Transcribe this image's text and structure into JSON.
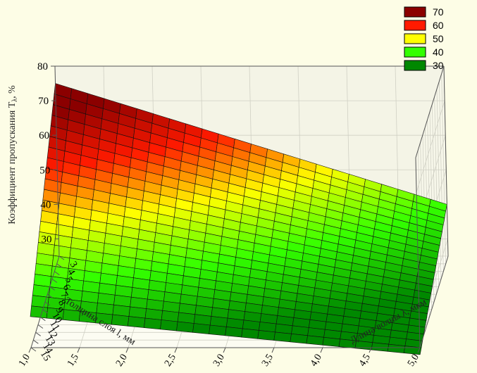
{
  "chart_data": {
    "type": "surface3d",
    "title": "",
    "x_label": "Длина волны λ, мкм",
    "y_label": "Толщина слоя l, мм",
    "z_label": "Коэффициент пропускания T",
    "z_label_sub": "λ",
    "z_label_unit": ", %",
    "x_ticks": [
      "1,0",
      "1,5",
      "2,0",
      "2,5",
      "3,0",
      "3,5",
      "4,0",
      "4,5",
      "5,0"
    ],
    "x_range": [
      1.0,
      5.0
    ],
    "y_ticks": [
      "3",
      "4",
      "5",
      "6",
      "7",
      "8",
      "9",
      "10",
      "11",
      "12",
      "13",
      "14",
      "15"
    ],
    "y_range": [
      3,
      15
    ],
    "z_ticks": [
      "30",
      "40",
      "50",
      "60",
      "70",
      "80"
    ],
    "z_range": [
      25,
      80
    ],
    "corner_values": {
      "wavelength_1_thickness_3": 75,
      "wavelength_5_thickness_3": 40,
      "wavelength_1_thickness_15": 34,
      "wavelength_5_thickness_15": 23
    },
    "legend": [
      {
        "label": "70",
        "color": "#8b0000"
      },
      {
        "label": "60",
        "color": "#ff1a00"
      },
      {
        "label": "50",
        "color": "#ffff00"
      },
      {
        "label": "40",
        "color": "#33ff00"
      },
      {
        "label": "30",
        "color": "#008800"
      }
    ],
    "grid": true,
    "legend_position": "top-right"
  }
}
